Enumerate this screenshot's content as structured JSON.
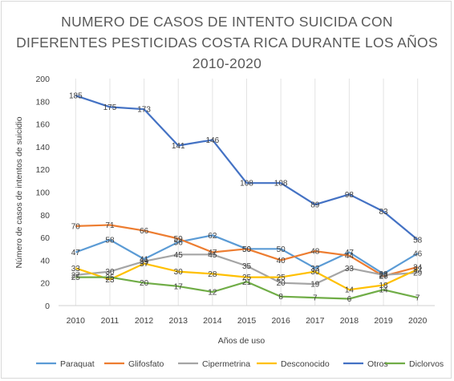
{
  "chart_data": {
    "type": "line",
    "title_lines": [
      "NUMERO DE CASOS DE INTENTO SUICIDA CON",
      "DIFERENTES PESTICIDAS COSTA RICA DURANTE LOS AÑOS",
      "2010-2020"
    ],
    "xlabel": "Años de uso",
    "ylabel": "Número de casos de intentos de suicidio",
    "categories": [
      "2010",
      "2011",
      "2012",
      "2013",
      "2014",
      "2015",
      "2016",
      "2017",
      "2018",
      "2019",
      "2020"
    ],
    "ylim": [
      0,
      200
    ],
    "yticks": [
      0,
      20,
      40,
      60,
      80,
      100,
      120,
      140,
      160,
      180,
      200
    ],
    "grid": "vertical",
    "legend_position": "bottom",
    "series": [
      {
        "name": "Paraquat",
        "color": "#5b9bd5",
        "values": [
          47,
          58,
          41,
          56,
          62,
          50,
          50,
          33,
          47,
          28,
          46
        ]
      },
      {
        "name": "Glifosfato",
        "color": "#ed7d31",
        "values": [
          70,
          71,
          66,
          59,
          47,
          50,
          40,
          48,
          44,
          26,
          34
        ]
      },
      {
        "name": "Cipermetrina",
        "color": "#a5a5a5",
        "values": [
          27,
          30,
          39,
          45,
          45,
          35,
          20,
          19,
          33,
          27,
          29
        ]
      },
      {
        "name": "Desconocido",
        "color": "#ffc000",
        "values": [
          33,
          23,
          37,
          30,
          28,
          25,
          25,
          30,
          14,
          18,
          32
        ]
      },
      {
        "name": "Otros",
        "color": "#4472c4",
        "values": [
          185,
          175,
          173,
          141,
          146,
          108,
          108,
          89,
          98,
          83,
          58
        ]
      },
      {
        "name": "Diclorvos",
        "color": "#70ad47",
        "values": [
          25,
          25,
          20,
          17,
          12,
          21,
          8,
          7,
          6,
          14,
          7
        ]
      }
    ]
  }
}
